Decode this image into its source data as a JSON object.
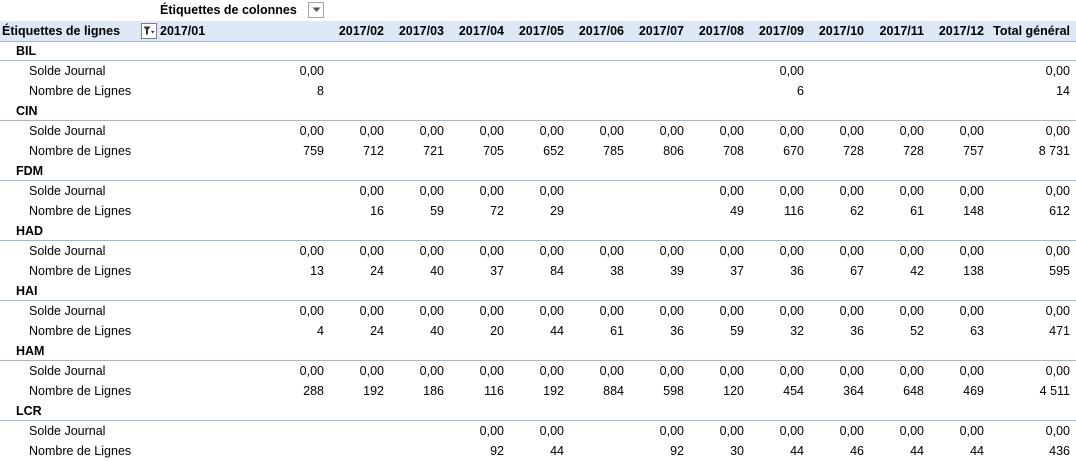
{
  "pivot": {
    "column_labels_caption": "Étiquettes de colonnes",
    "row_labels_header": "Étiquettes de lignes",
    "months": [
      "2017/01",
      "2017/02",
      "2017/03",
      "2017/04",
      "2017/05",
      "2017/06",
      "2017/07",
      "2017/08",
      "2017/09",
      "2017/10",
      "2017/11",
      "2017/12"
    ],
    "total_header": "Total général",
    "groups": [
      {
        "name": "BIL",
        "rows": [
          {
            "label": "Solde Journal",
            "values": [
              "0,00",
              "",
              "",
              "",
              "",
              "",
              "",
              "",
              "0,00",
              "",
              "",
              ""
            ],
            "total": "0,00"
          },
          {
            "label": "Nombre de Lignes",
            "values": [
              "8",
              "",
              "",
              "",
              "",
              "",
              "",
              "",
              "6",
              "",
              "",
              ""
            ],
            "total": "14"
          }
        ]
      },
      {
        "name": "CIN",
        "rows": [
          {
            "label": "Solde Journal",
            "values": [
              "0,00",
              "0,00",
              "0,00",
              "0,00",
              "0,00",
              "0,00",
              "0,00",
              "0,00",
              "0,00",
              "0,00",
              "0,00",
              "0,00"
            ],
            "total": "0,00"
          },
          {
            "label": "Nombre de Lignes",
            "values": [
              "759",
              "712",
              "721",
              "705",
              "652",
              "785",
              "806",
              "708",
              "670",
              "728",
              "728",
              "757"
            ],
            "total": "8 731"
          }
        ]
      },
      {
        "name": "FDM",
        "rows": [
          {
            "label": "Solde Journal",
            "values": [
              "",
              "0,00",
              "0,00",
              "0,00",
              "0,00",
              "",
              "",
              "0,00",
              "0,00",
              "0,00",
              "0,00",
              "0,00"
            ],
            "total": "0,00"
          },
          {
            "label": "Nombre de Lignes",
            "values": [
              "",
              "16",
              "59",
              "72",
              "29",
              "",
              "",
              "49",
              "116",
              "62",
              "61",
              "148"
            ],
            "total": "612"
          }
        ]
      },
      {
        "name": "HAD",
        "rows": [
          {
            "label": "Solde Journal",
            "values": [
              "0,00",
              "0,00",
              "0,00",
              "0,00",
              "0,00",
              "0,00",
              "0,00",
              "0,00",
              "0,00",
              "0,00",
              "0,00",
              "0,00"
            ],
            "total": "0,00"
          },
          {
            "label": "Nombre de Lignes",
            "values": [
              "13",
              "24",
              "40",
              "37",
              "84",
              "38",
              "39",
              "37",
              "36",
              "67",
              "42",
              "138"
            ],
            "total": "595"
          }
        ]
      },
      {
        "name": "HAI",
        "rows": [
          {
            "label": "Solde Journal",
            "values": [
              "0,00",
              "0,00",
              "0,00",
              "0,00",
              "0,00",
              "0,00",
              "0,00",
              "0,00",
              "0,00",
              "0,00",
              "0,00",
              "0,00"
            ],
            "total": "0,00"
          },
          {
            "label": "Nombre de Lignes",
            "values": [
              "4",
              "24",
              "40",
              "20",
              "44",
              "61",
              "36",
              "59",
              "32",
              "36",
              "52",
              "63"
            ],
            "total": "471"
          }
        ]
      },
      {
        "name": "HAM",
        "rows": [
          {
            "label": "Solde Journal",
            "values": [
              "0,00",
              "0,00",
              "0,00",
              "0,00",
              "0,00",
              "0,00",
              "0,00",
              "0,00",
              "0,00",
              "0,00",
              "0,00",
              "0,00"
            ],
            "total": "0,00"
          },
          {
            "label": "Nombre de Lignes",
            "values": [
              "288",
              "192",
              "186",
              "116",
              "192",
              "884",
              "598",
              "120",
              "454",
              "364",
              "648",
              "469"
            ],
            "total": "4 511"
          }
        ]
      },
      {
        "name": "LCR",
        "rows": [
          {
            "label": "Solde Journal",
            "values": [
              "",
              "",
              "",
              "0,00",
              "0,00",
              "",
              "0,00",
              "0,00",
              "0,00",
              "0,00",
              "0,00",
              "0,00"
            ],
            "total": "0,00"
          },
          {
            "label": "Nombre de Lignes",
            "values": [
              "",
              "",
              "",
              "92",
              "44",
              "",
              "92",
              "30",
              "44",
              "46",
              "44",
              "44"
            ],
            "total": "436"
          }
        ]
      }
    ]
  },
  "icons": {
    "column_filter": "chevron-down-icon",
    "row_filter": "filter-dropdown-icon"
  },
  "colors": {
    "header_background": "#dde7f6",
    "divider": "#9fb6d9"
  }
}
